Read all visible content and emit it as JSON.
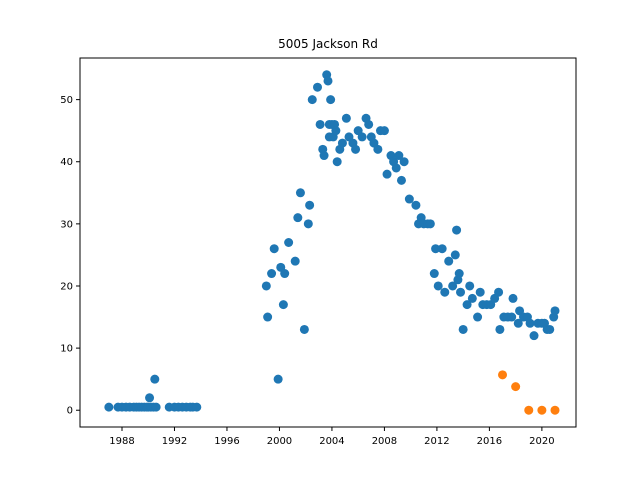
{
  "chart_data": {
    "type": "scatter",
    "title": "5005 Jackson Rd",
    "xlabel": "",
    "ylabel": "",
    "xlim": [
      1984.8,
      2022.6
    ],
    "ylim": [
      -2.7,
      56.7
    ],
    "x_ticks": [
      1988,
      1992,
      1996,
      2000,
      2004,
      2008,
      2012,
      2016,
      2020
    ],
    "y_ticks": [
      0,
      10,
      20,
      30,
      40,
      50
    ],
    "grid": false,
    "legend": "none",
    "colors": {
      "primary": "#1f77b4",
      "secondary": "#ff7f0e"
    },
    "series": [
      {
        "color": "#1f77b4",
        "points": [
          [
            1987.0,
            0.5
          ],
          [
            1987.7,
            0.5
          ],
          [
            1988.0,
            0.5
          ],
          [
            1988.3,
            0.5
          ],
          [
            1988.6,
            0.5
          ],
          [
            1988.9,
            0.5
          ],
          [
            1989.1,
            0.5
          ],
          [
            1989.3,
            0.5
          ],
          [
            1989.5,
            0.5
          ],
          [
            1989.7,
            0.5
          ],
          [
            1989.9,
            0.5
          ],
          [
            1990.0,
            0.5
          ],
          [
            1990.1,
            2.0
          ],
          [
            1990.2,
            0.5
          ],
          [
            1990.4,
            0.5
          ],
          [
            1990.5,
            5.0
          ],
          [
            1990.6,
            0.5
          ],
          [
            1991.6,
            0.5
          ],
          [
            1992.0,
            0.5
          ],
          [
            1992.3,
            0.5
          ],
          [
            1992.6,
            0.5
          ],
          [
            1992.9,
            0.5
          ],
          [
            1993.2,
            0.5
          ],
          [
            1993.4,
            0.5
          ],
          [
            1993.7,
            0.5
          ],
          [
            1999.0,
            20
          ],
          [
            1999.1,
            15
          ],
          [
            1999.4,
            22
          ],
          [
            1999.6,
            26
          ],
          [
            1999.9,
            5
          ],
          [
            2000.1,
            23
          ],
          [
            2000.3,
            17
          ],
          [
            2000.4,
            22
          ],
          [
            2000.7,
            27
          ],
          [
            2001.2,
            24
          ],
          [
            2001.4,
            31
          ],
          [
            2001.6,
            35
          ],
          [
            2001.9,
            13
          ],
          [
            2002.2,
            30
          ],
          [
            2002.3,
            33
          ],
          [
            2002.5,
            50
          ],
          [
            2002.9,
            52
          ],
          [
            2003.1,
            46
          ],
          [
            2003.3,
            42
          ],
          [
            2003.4,
            41
          ],
          [
            2003.6,
            54
          ],
          [
            2003.7,
            53
          ],
          [
            2003.8,
            46
          ],
          [
            2003.8,
            44
          ],
          [
            2003.9,
            50
          ],
          [
            2004.0,
            46
          ],
          [
            2004.1,
            44
          ],
          [
            2004.2,
            46
          ],
          [
            2004.3,
            45
          ],
          [
            2004.4,
            40
          ],
          [
            2004.6,
            42
          ],
          [
            2004.8,
            43
          ],
          [
            2005.1,
            47
          ],
          [
            2005.3,
            44
          ],
          [
            2005.6,
            43
          ],
          [
            2005.8,
            42
          ],
          [
            2006.0,
            45
          ],
          [
            2006.3,
            44
          ],
          [
            2006.6,
            47
          ],
          [
            2006.8,
            46
          ],
          [
            2007.0,
            44
          ],
          [
            2007.2,
            43
          ],
          [
            2007.5,
            42
          ],
          [
            2007.7,
            45
          ],
          [
            2008.0,
            45
          ],
          [
            2008.2,
            38
          ],
          [
            2008.5,
            41
          ],
          [
            2008.7,
            40
          ],
          [
            2008.9,
            39
          ],
          [
            2009.1,
            41
          ],
          [
            2009.3,
            37
          ],
          [
            2009.5,
            40
          ],
          [
            2009.9,
            34
          ],
          [
            2010.4,
            33
          ],
          [
            2010.6,
            30
          ],
          [
            2010.8,
            31
          ],
          [
            2011.0,
            30
          ],
          [
            2011.3,
            30
          ],
          [
            2011.5,
            30
          ],
          [
            2011.8,
            22
          ],
          [
            2011.9,
            26
          ],
          [
            2012.1,
            20
          ],
          [
            2012.4,
            26
          ],
          [
            2012.6,
            19
          ],
          [
            2012.9,
            24
          ],
          [
            2013.2,
            20
          ],
          [
            2013.4,
            25
          ],
          [
            2013.5,
            29
          ],
          [
            2013.6,
            21
          ],
          [
            2013.7,
            22
          ],
          [
            2013.8,
            19
          ],
          [
            2014.0,
            13
          ],
          [
            2014.3,
            17
          ],
          [
            2014.5,
            20
          ],
          [
            2014.7,
            18
          ],
          [
            2015.1,
            15
          ],
          [
            2015.3,
            19
          ],
          [
            2015.5,
            17
          ],
          [
            2015.8,
            17
          ],
          [
            2016.1,
            17
          ],
          [
            2016.4,
            18
          ],
          [
            2016.7,
            19
          ],
          [
            2016.8,
            13
          ],
          [
            2017.1,
            15
          ],
          [
            2017.4,
            15
          ],
          [
            2017.7,
            15
          ],
          [
            2017.8,
            18
          ],
          [
            2018.2,
            14
          ],
          [
            2018.3,
            16
          ],
          [
            2018.6,
            15
          ],
          [
            2018.9,
            15
          ],
          [
            2019.1,
            14
          ],
          [
            2019.4,
            12
          ],
          [
            2019.7,
            14
          ],
          [
            2020.0,
            14
          ],
          [
            2020.2,
            14
          ],
          [
            2020.4,
            13
          ],
          [
            2020.6,
            13
          ],
          [
            2020.9,
            15
          ],
          [
            2021.0,
            16
          ]
        ]
      },
      {
        "color": "#ff7f0e",
        "points": [
          [
            2017.0,
            5.7
          ],
          [
            2018.0,
            3.8
          ],
          [
            2019.0,
            0
          ],
          [
            2020.0,
            0
          ],
          [
            2021.0,
            0
          ]
        ]
      }
    ]
  }
}
